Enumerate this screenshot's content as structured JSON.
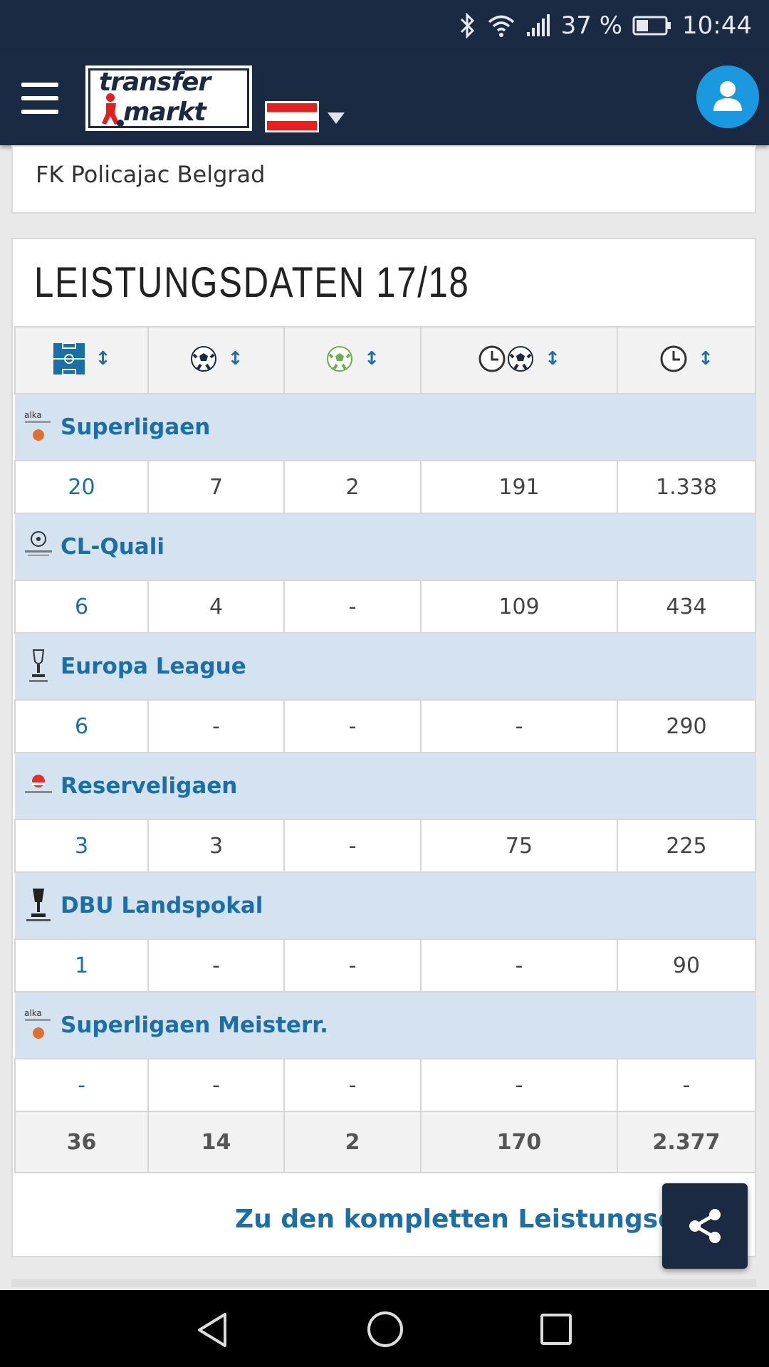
{
  "status": {
    "battery_percent": "37 %",
    "time": "10:44"
  },
  "header": {
    "logo_line1": "transfer",
    "logo_line2": "markt"
  },
  "club_name": "FK Policajac Belgrad",
  "stats": {
    "title": "LEISTUNGSDATEN 17/18",
    "sort_glyph": "↕",
    "competitions": [
      {
        "name": "Superligaen",
        "values": [
          "20",
          "7",
          "2",
          "191",
          "1.338"
        ]
      },
      {
        "name": "CL-Quali",
        "values": [
          "6",
          "4",
          "-",
          "109",
          "434"
        ]
      },
      {
        "name": "Europa League",
        "values": [
          "6",
          "-",
          "-",
          "-",
          "290"
        ]
      },
      {
        "name": "Reserveligaen",
        "values": [
          "3",
          "3",
          "-",
          "75",
          "225"
        ]
      },
      {
        "name": "DBU Landspokal",
        "values": [
          "1",
          "-",
          "-",
          "-",
          "90"
        ]
      },
      {
        "name": "Superligaen Meisterr.",
        "values": [
          "-",
          "-",
          "-",
          "-",
          "-"
        ]
      }
    ],
    "totals": [
      "36",
      "14",
      "2",
      "170",
      "2.377"
    ],
    "more_link": "Zu den kompletten Leistungsdaten"
  },
  "colors": {
    "navy": "#1a2a43",
    "link": "#1b6fa8",
    "competition_row": "#d4e3ef",
    "avatar": "#1a99e0"
  }
}
